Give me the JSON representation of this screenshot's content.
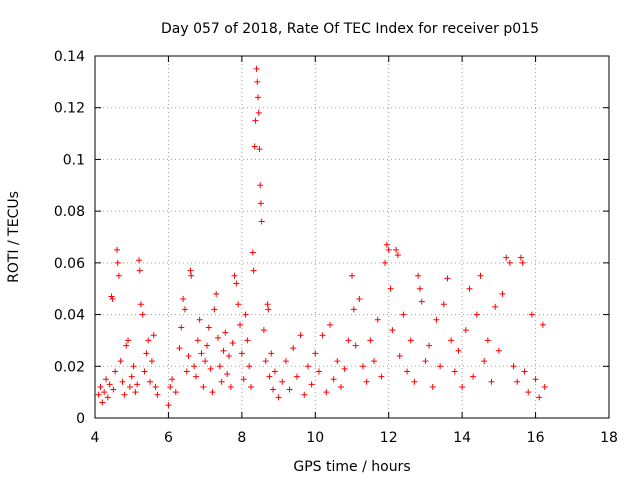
{
  "chart_data": {
    "type": "scatter",
    "title": "Day 057 of 2018, Rate Of TEC Index for receiver p015",
    "xlabel": "GPS time / hours",
    "ylabel": "ROTI / TECUs",
    "xlim": [
      4,
      18
    ],
    "ylim": [
      0,
      0.14
    ],
    "x_ticks": [
      4,
      6,
      8,
      10,
      12,
      14,
      16,
      18
    ],
    "x_tick_labels": [
      "4",
      "6",
      "8",
      "10",
      "12",
      "14",
      "16",
      "18"
    ],
    "y_ticks": [
      0,
      0.02,
      0.04,
      0.06,
      0.08,
      0.1,
      0.12,
      0.14
    ],
    "y_tick_labels": [
      "0",
      "0.02",
      "0.04",
      "0.06",
      "0.08",
      "0.1",
      "0.12",
      "0.14"
    ],
    "grid": true,
    "marker": "plus",
    "color": "#ff0000",
    "series": [
      {
        "name": "ROTI",
        "points": [
          [
            4.1,
            0.009
          ],
          [
            4.15,
            0.012
          ],
          [
            4.2,
            0.006
          ],
          [
            4.25,
            0.01
          ],
          [
            4.3,
            0.015
          ],
          [
            4.35,
            0.008
          ],
          [
            4.4,
            0.013
          ],
          [
            4.45,
            0.047
          ],
          [
            4.48,
            0.046
          ],
          [
            4.5,
            0.011
          ],
          [
            4.55,
            0.018
          ],
          [
            4.6,
            0.065
          ],
          [
            4.62,
            0.06
          ],
          [
            4.65,
            0.055
          ],
          [
            4.7,
            0.022
          ],
          [
            4.75,
            0.014
          ],
          [
            4.8,
            0.009
          ],
          [
            4.85,
            0.028
          ],
          [
            4.9,
            0.03
          ],
          [
            4.95,
            0.012
          ],
          [
            5.0,
            0.016
          ],
          [
            5.05,
            0.02
          ],
          [
            5.1,
            0.01
          ],
          [
            5.15,
            0.013
          ],
          [
            5.2,
            0.061
          ],
          [
            5.22,
            0.057
          ],
          [
            5.25,
            0.044
          ],
          [
            5.3,
            0.04
          ],
          [
            5.35,
            0.018
          ],
          [
            5.4,
            0.025
          ],
          [
            5.45,
            0.03
          ],
          [
            5.5,
            0.014
          ],
          [
            5.55,
            0.022
          ],
          [
            5.6,
            0.032
          ],
          [
            5.65,
            0.012
          ],
          [
            5.7,
            0.009
          ],
          [
            6.0,
            0.005
          ],
          [
            6.05,
            0.012
          ],
          [
            6.1,
            0.015
          ],
          [
            6.2,
            0.01
          ],
          [
            6.3,
            0.027
          ],
          [
            6.35,
            0.035
          ],
          [
            6.4,
            0.046
          ],
          [
            6.45,
            0.042
          ],
          [
            6.5,
            0.018
          ],
          [
            6.55,
            0.024
          ],
          [
            6.6,
            0.057
          ],
          [
            6.62,
            0.055
          ],
          [
            6.7,
            0.02
          ],
          [
            6.75,
            0.016
          ],
          [
            6.8,
            0.03
          ],
          [
            6.85,
            0.038
          ],
          [
            6.9,
            0.025
          ],
          [
            6.95,
            0.012
          ],
          [
            7.0,
            0.022
          ],
          [
            7.05,
            0.028
          ],
          [
            7.1,
            0.035
          ],
          [
            7.15,
            0.019
          ],
          [
            7.2,
            0.01
          ],
          [
            7.25,
            0.042
          ],
          [
            7.3,
            0.048
          ],
          [
            7.35,
            0.031
          ],
          [
            7.4,
            0.02
          ],
          [
            7.45,
            0.014
          ],
          [
            7.5,
            0.026
          ],
          [
            7.55,
            0.033
          ],
          [
            7.6,
            0.017
          ],
          [
            7.65,
            0.024
          ],
          [
            7.7,
            0.012
          ],
          [
            7.75,
            0.029
          ],
          [
            7.8,
            0.055
          ],
          [
            7.85,
            0.052
          ],
          [
            7.9,
            0.044
          ],
          [
            7.95,
            0.036
          ],
          [
            8.0,
            0.025
          ],
          [
            8.05,
            0.015
          ],
          [
            8.1,
            0.04
          ],
          [
            8.15,
            0.03
          ],
          [
            8.2,
            0.02
          ],
          [
            8.25,
            0.012
          ],
          [
            8.3,
            0.064
          ],
          [
            8.32,
            0.057
          ],
          [
            8.35,
            0.105
          ],
          [
            8.37,
            0.115
          ],
          [
            8.4,
            0.135
          ],
          [
            8.42,
            0.13
          ],
          [
            8.44,
            0.124
          ],
          [
            8.46,
            0.118
          ],
          [
            8.48,
            0.104
          ],
          [
            8.5,
            0.09
          ],
          [
            8.52,
            0.083
          ],
          [
            8.54,
            0.076
          ],
          [
            8.6,
            0.034
          ],
          [
            8.65,
            0.022
          ],
          [
            8.7,
            0.044
          ],
          [
            8.72,
            0.042
          ],
          [
            8.75,
            0.016
          ],
          [
            8.8,
            0.025
          ],
          [
            8.85,
            0.011
          ],
          [
            8.9,
            0.018
          ],
          [
            9.0,
            0.008
          ],
          [
            9.1,
            0.014
          ],
          [
            9.2,
            0.022
          ],
          [
            9.3,
            0.011
          ],
          [
            9.4,
            0.027
          ],
          [
            9.5,
            0.016
          ],
          [
            9.6,
            0.032
          ],
          [
            9.7,
            0.009
          ],
          [
            9.8,
            0.02
          ],
          [
            9.9,
            0.013
          ],
          [
            10.0,
            0.025
          ],
          [
            10.1,
            0.018
          ],
          [
            10.2,
            0.032
          ],
          [
            10.3,
            0.01
          ],
          [
            10.4,
            0.036
          ],
          [
            10.5,
            0.015
          ],
          [
            10.6,
            0.022
          ],
          [
            10.7,
            0.012
          ],
          [
            10.8,
            0.019
          ],
          [
            10.9,
            0.03
          ],
          [
            11.0,
            0.055
          ],
          [
            11.05,
            0.042
          ],
          [
            11.1,
            0.028
          ],
          [
            11.2,
            0.046
          ],
          [
            11.3,
            0.02
          ],
          [
            11.4,
            0.014
          ],
          [
            11.5,
            0.03
          ],
          [
            11.6,
            0.022
          ],
          [
            11.7,
            0.038
          ],
          [
            11.8,
            0.016
          ],
          [
            11.9,
            0.06
          ],
          [
            11.95,
            0.067
          ],
          [
            12.0,
            0.065
          ],
          [
            12.05,
            0.05
          ],
          [
            12.1,
            0.034
          ],
          [
            12.2,
            0.065
          ],
          [
            12.25,
            0.063
          ],
          [
            12.3,
            0.024
          ],
          [
            12.4,
            0.04
          ],
          [
            12.5,
            0.018
          ],
          [
            12.6,
            0.03
          ],
          [
            12.7,
            0.014
          ],
          [
            12.8,
            0.055
          ],
          [
            12.85,
            0.05
          ],
          [
            12.9,
            0.045
          ],
          [
            13.0,
            0.022
          ],
          [
            13.1,
            0.028
          ],
          [
            13.2,
            0.012
          ],
          [
            13.3,
            0.038
          ],
          [
            13.4,
            0.02
          ],
          [
            13.5,
            0.044
          ],
          [
            13.6,
            0.054
          ],
          [
            13.7,
            0.03
          ],
          [
            13.8,
            0.018
          ],
          [
            13.9,
            0.026
          ],
          [
            14.0,
            0.012
          ],
          [
            14.1,
            0.034
          ],
          [
            14.2,
            0.05
          ],
          [
            14.3,
            0.016
          ],
          [
            14.4,
            0.04
          ],
          [
            14.5,
            0.055
          ],
          [
            14.6,
            0.022
          ],
          [
            14.7,
            0.03
          ],
          [
            14.8,
            0.014
          ],
          [
            14.9,
            0.043
          ],
          [
            15.0,
            0.026
          ],
          [
            15.1,
            0.048
          ],
          [
            15.2,
            0.062
          ],
          [
            15.3,
            0.06
          ],
          [
            15.4,
            0.02
          ],
          [
            15.5,
            0.014
          ],
          [
            15.6,
            0.062
          ],
          [
            15.65,
            0.06
          ],
          [
            15.7,
            0.018
          ],
          [
            15.8,
            0.01
          ],
          [
            15.9,
            0.04
          ],
          [
            16.0,
            0.015
          ],
          [
            16.1,
            0.008
          ],
          [
            16.2,
            0.036
          ],
          [
            16.25,
            0.012
          ]
        ]
      }
    ]
  }
}
